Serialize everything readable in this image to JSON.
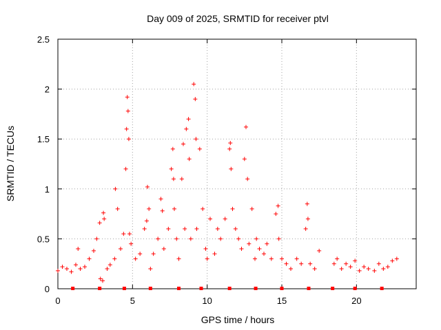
{
  "chart_data": {
    "type": "scatter",
    "title": "Day 009 of 2025, SRMTID for receiver ptvl",
    "xlabel": "GPS time / hours",
    "ylabel": "SRMTID / TECUs",
    "xlim": [
      0,
      24
    ],
    "ylim": [
      0,
      2.5
    ],
    "xticks": [
      0,
      5,
      10,
      15,
      20
    ],
    "yticks": [
      0,
      0.5,
      1,
      1.5,
      2,
      2.5
    ],
    "ytick_labels": [
      "0",
      "0.5",
      "1",
      "1.5",
      "2",
      "2.5"
    ],
    "grid": true,
    "marker": "+",
    "color": "#ff0000",
    "series": [
      {
        "name": "SRMTID",
        "x": [
          0.0,
          0.3,
          0.6,
          0.9,
          1.2,
          1.35,
          1.5,
          1.8,
          2.1,
          2.4,
          2.6,
          2.8,
          2.85,
          3.0,
          3.05,
          3.1,
          3.3,
          3.5,
          3.8,
          3.85,
          4.0,
          4.2,
          4.4,
          4.55,
          4.6,
          4.65,
          4.7,
          4.75,
          4.8,
          4.9,
          5.2,
          5.5,
          5.8,
          5.95,
          6.0,
          6.1,
          6.2,
          6.4,
          6.7,
          6.9,
          7.0,
          7.1,
          7.4,
          7.6,
          7.7,
          7.75,
          7.8,
          7.95,
          8.1,
          8.3,
          8.4,
          8.5,
          8.6,
          8.75,
          8.8,
          8.9,
          9.1,
          9.2,
          9.25,
          9.3,
          9.5,
          9.7,
          9.9,
          10.0,
          10.2,
          10.5,
          10.7,
          10.9,
          11.2,
          11.5,
          11.55,
          11.6,
          11.7,
          11.9,
          12.1,
          12.3,
          12.5,
          12.6,
          12.7,
          12.8,
          13.0,
          13.2,
          13.3,
          13.5,
          13.8,
          14.0,
          14.3,
          14.6,
          14.75,
          14.8,
          15.0,
          15.3,
          15.6,
          16.0,
          16.3,
          16.6,
          16.7,
          16.75,
          16.9,
          17.2,
          17.5,
          18.5,
          18.7,
          19.0,
          19.3,
          19.6,
          19.9,
          20.2,
          20.5,
          20.8,
          21.2,
          21.5,
          21.8,
          22.1,
          22.4,
          22.7
        ],
        "y": [
          0.18,
          0.22,
          0.2,
          0.17,
          0.24,
          0.4,
          0.2,
          0.22,
          0.3,
          0.38,
          0.5,
          0.66,
          0.1,
          0.08,
          0.76,
          0.7,
          0.2,
          0.24,
          0.3,
          1.0,
          0.8,
          0.4,
          0.55,
          1.2,
          1.6,
          1.92,
          1.78,
          1.5,
          0.55,
          0.45,
          0.3,
          0.35,
          0.6,
          0.68,
          1.02,
          0.8,
          0.2,
          0.35,
          0.5,
          0.9,
          0.78,
          0.4,
          0.6,
          1.2,
          1.4,
          1.1,
          0.8,
          0.5,
          0.3,
          1.1,
          1.45,
          0.6,
          1.6,
          1.7,
          1.3,
          0.5,
          2.05,
          1.9,
          1.5,
          0.6,
          1.4,
          0.8,
          0.4,
          0.3,
          0.7,
          0.35,
          0.6,
          0.5,
          0.7,
          1.4,
          1.46,
          1.2,
          0.8,
          0.6,
          0.5,
          0.4,
          1.3,
          1.62,
          1.1,
          0.45,
          0.8,
          0.3,
          0.5,
          0.4,
          0.35,
          0.45,
          0.3,
          0.75,
          0.83,
          0.5,
          0.3,
          0.25,
          0.2,
          0.3,
          0.25,
          0.6,
          0.85,
          0.7,
          0.25,
          0.2,
          0.38,
          0.25,
          0.3,
          0.2,
          0.25,
          0.22,
          0.28,
          0.18,
          0.22,
          0.2,
          0.18,
          0.25,
          0.2,
          0.22,
          0.28,
          0.3
        ]
      }
    ],
    "gap_markers_x": [
      1.0,
      2.8,
      4.45,
      6.2,
      8.1,
      9.6,
      11.5,
      13.25,
      15.0,
      16.8,
      18.4,
      19.9,
      21.7
    ]
  }
}
